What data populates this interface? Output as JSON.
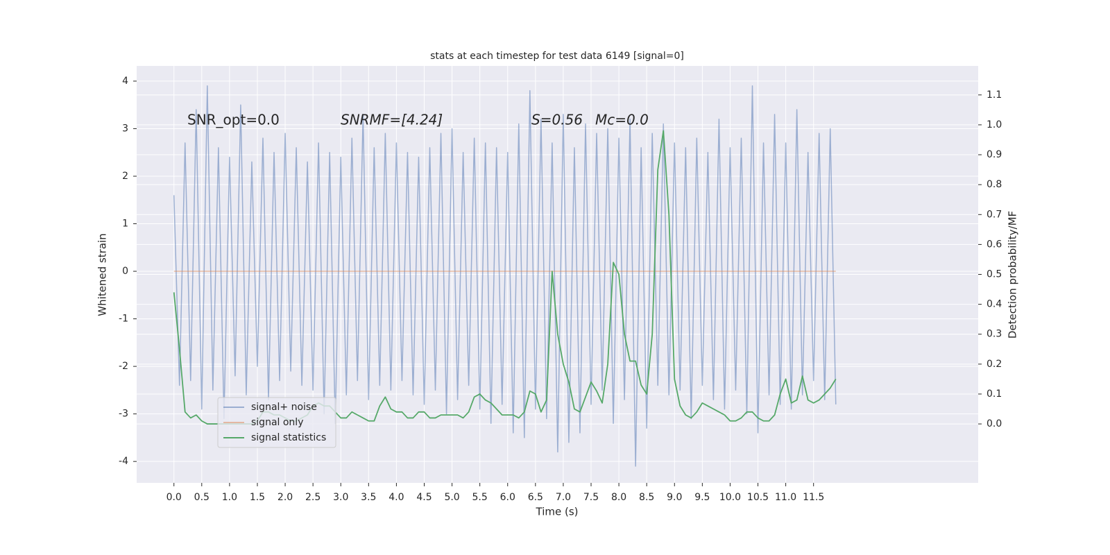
{
  "chart_data": {
    "type": "line",
    "title": "stats at each timestep for test data 6149 [signal=0]",
    "xlabel": "Time (s)",
    "ylabel": "Whitened strain",
    "y2label": "Detection probability/MF",
    "annotations": [
      "SNR_opt=0.0",
      "SNRMF=[4.24]",
      "S=0.56",
      "Mc=0.0"
    ],
    "x": [
      0,
      0.1,
      0.2,
      0.3,
      0.4,
      0.5,
      0.6,
      0.7,
      0.8,
      0.9,
      1,
      1.1,
      1.2,
      1.3,
      1.4,
      1.5,
      1.6,
      1.7,
      1.8,
      1.9,
      2,
      2.1,
      2.2,
      2.3,
      2.4,
      2.5,
      2.6,
      2.7,
      2.8,
      2.9,
      3,
      3.1,
      3.2,
      3.3,
      3.4,
      3.5,
      3.6,
      3.7,
      3.8,
      3.9,
      4,
      4.1,
      4.2,
      4.3,
      4.4,
      4.5,
      4.6,
      4.7,
      4.8,
      4.9,
      5,
      5.1,
      5.2,
      5.3,
      5.4,
      5.5,
      5.6,
      5.7,
      5.8,
      5.9,
      6,
      6.1,
      6.2,
      6.3,
      6.4,
      6.5,
      6.6,
      6.7,
      6.8,
      6.9,
      7,
      7.1,
      7.2,
      7.3,
      7.4,
      7.5,
      7.6,
      7.7,
      7.8,
      7.9,
      8,
      8.1,
      8.2,
      8.3,
      8.4,
      8.5,
      8.6,
      8.7,
      8.8,
      8.9,
      9,
      9.1,
      9.2,
      9.3,
      9.4,
      9.5,
      9.6,
      9.7,
      9.8,
      9.9,
      10,
      10.1,
      10.2,
      10.3,
      10.4,
      10.5,
      10.6,
      10.7,
      10.8,
      10.9,
      11,
      11.1,
      11.2,
      11.3,
      11.4,
      11.5,
      11.6,
      11.7,
      11.8,
      11.9
    ],
    "series": [
      {
        "name": "signal+ noise",
        "color": "#4c72b0",
        "values": [
          1.6,
          -2.4,
          2.7,
          -2.3,
          3.4,
          -2.9,
          3.9,
          -2.5,
          2.6,
          -3.1,
          2.4,
          -2.2,
          3.5,
          -2.6,
          2.3,
          -2.0,
          2.8,
          -2.7,
          2.5,
          -2.3,
          2.9,
          -2.1,
          2.6,
          -2.4,
          2.3,
          -2.5,
          2.7,
          -3.0,
          2.5,
          -3.2,
          2.4,
          -2.6,
          2.8,
          -2.3,
          3.3,
          -2.7,
          2.6,
          -2.4,
          2.9,
          -2.5,
          2.7,
          -2.3,
          2.5,
          -2.6,
          2.4,
          -2.8,
          2.6,
          -2.5,
          2.9,
          -3.0,
          3.0,
          -2.7,
          2.5,
          -2.4,
          2.8,
          -2.9,
          2.7,
          -3.2,
          2.6,
          -2.8,
          2.5,
          -3.4,
          3.1,
          -3.5,
          3.8,
          -2.9,
          3.2,
          -3.1,
          2.7,
          -3.8,
          3.3,
          -3.6,
          2.6,
          -3.4,
          3.1,
          -2.8,
          2.9,
          -2.5,
          3.0,
          -3.2,
          2.8,
          -2.7,
          3.2,
          -4.1,
          2.6,
          -3.3,
          2.9,
          -2.4,
          3.1,
          -2.6,
          2.7,
          -2.5,
          2.6,
          -3.1,
          2.8,
          -2.4,
          2.5,
          -2.7,
          3.2,
          -2.9,
          2.6,
          -2.5,
          2.8,
          -3.0,
          3.9,
          -3.4,
          2.7,
          -2.6,
          3.3,
          -2.8,
          2.7,
          -2.9,
          3.4,
          -2.6,
          2.5,
          -2.3,
          2.9,
          -2.7,
          3.0,
          -2.8
        ]
      },
      {
        "name": "signal only",
        "color": "#dd8452",
        "values": [
          0,
          0,
          0,
          0,
          0,
          0,
          0,
          0,
          0,
          0,
          0,
          0,
          0,
          0,
          0,
          0,
          0,
          0,
          0,
          0,
          0,
          0,
          0,
          0,
          0,
          0,
          0,
          0,
          0,
          0,
          0,
          0,
          0,
          0,
          0,
          0,
          0,
          0,
          0,
          0,
          0,
          0,
          0,
          0,
          0,
          0,
          0,
          0,
          0,
          0,
          0,
          0,
          0,
          0,
          0,
          0,
          0,
          0,
          0,
          0,
          0,
          0,
          0,
          0,
          0,
          0,
          0,
          0,
          0,
          0,
          0,
          0,
          0,
          0,
          0,
          0,
          0,
          0,
          0,
          0,
          0,
          0,
          0,
          0,
          0,
          0,
          0,
          0,
          0,
          0,
          0,
          0,
          0,
          0,
          0,
          0,
          0,
          0,
          0,
          0,
          0,
          0,
          0,
          0,
          0,
          0,
          0,
          0,
          0,
          0,
          0,
          0,
          0,
          0,
          0,
          0,
          0,
          0,
          0,
          0
        ]
      },
      {
        "name": "signal statistics",
        "color": "#55a868",
        "axis": "y2",
        "values": [
          0.44,
          0.25,
          0.04,
          0.02,
          0.03,
          0.01,
          0.0,
          0.0,
          0.0,
          0.0,
          0.0,
          0.0,
          0.0,
          0.0,
          0.0,
          0.01,
          0.04,
          0.04,
          0.03,
          0.03,
          0.02,
          0.01,
          0.01,
          0.02,
          0.03,
          0.06,
          0.07,
          0.06,
          0.06,
          0.04,
          0.02,
          0.02,
          0.04,
          0.03,
          0.02,
          0.01,
          0.01,
          0.06,
          0.09,
          0.05,
          0.04,
          0.04,
          0.02,
          0.02,
          0.04,
          0.04,
          0.02,
          0.02,
          0.03,
          0.03,
          0.03,
          0.03,
          0.02,
          0.04,
          0.09,
          0.1,
          0.08,
          0.07,
          0.05,
          0.03,
          0.03,
          0.03,
          0.02,
          0.04,
          0.11,
          0.1,
          0.04,
          0.08,
          0.51,
          0.3,
          0.2,
          0.14,
          0.05,
          0.04,
          0.09,
          0.14,
          0.11,
          0.07,
          0.2,
          0.54,
          0.5,
          0.3,
          0.21,
          0.21,
          0.13,
          0.1,
          0.3,
          0.85,
          0.98,
          0.7,
          0.15,
          0.06,
          0.03,
          0.02,
          0.04,
          0.07,
          0.06,
          0.05,
          0.04,
          0.03,
          0.01,
          0.01,
          0.02,
          0.04,
          0.04,
          0.02,
          0.01,
          0.01,
          0.03,
          0.1,
          0.15,
          0.07,
          0.08,
          0.16,
          0.08,
          0.07,
          0.08,
          0.1,
          0.12,
          0.15
        ]
      }
    ],
    "xlim": [
      -0.67,
      14.46
    ],
    "xticks": [
      {
        "value": 0,
        "label": "0.0"
      },
      0.5,
      {
        "value": 1,
        "label": "1.0"
      },
      1.5,
      {
        "value": 2,
        "label": "2.0"
      },
      2.5,
      {
        "value": 3,
        "label": "3.0"
      },
      3.5,
      {
        "value": 4,
        "label": "4.0"
      },
      4.5,
      {
        "value": 5,
        "label": "5.0"
      },
      5.5,
      {
        "value": 6,
        "label": "6.0"
      },
      6.5,
      {
        "value": 7,
        "label": "7.0"
      },
      7.5,
      {
        "value": 8,
        "label": "8.0"
      },
      8.5,
      {
        "value": 9,
        "label": "9.0"
      },
      9.5,
      {
        "value": 10,
        "label": "10.0"
      },
      10.5,
      {
        "value": 11,
        "label": "11.0"
      },
      11.5
    ],
    "ylim": [
      -4.45,
      4.32
    ],
    "yticks": [
      -4,
      -3,
      -2,
      -1,
      0,
      1,
      2,
      3,
      4
    ],
    "y2lim": [
      -0.197,
      1.197
    ],
    "y2ticks": [
      {
        "value": 0,
        "label": "0.0"
      },
      0.1,
      0.2,
      0.3,
      0.4,
      0.5,
      0.6,
      0.7,
      0.8,
      0.9,
      {
        "value": 1,
        "label": "1.0"
      },
      1.1
    ],
    "grid": true,
    "legend": "lower left"
  }
}
